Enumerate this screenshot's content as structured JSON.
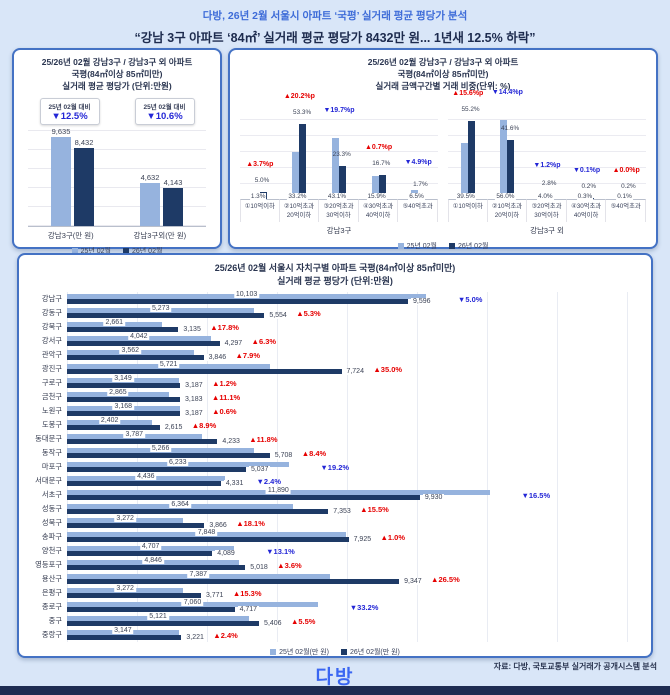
{
  "header": {
    "line1": "다방, 26년 2월 서울시 아파트 ‘국평’ 실거래 평균 평당가 분석",
    "line2": "“강남 3구 아파트 ‘84㎡’ 실거래 평균 평당가 8432만 원... 1년새 12.5% 하락”"
  },
  "colors": {
    "background": "#d9e6f8",
    "panel_border": "#4472c4",
    "series_25feb": "#96b3de",
    "series_26feb": "#1e3a66",
    "up_red": "#e60000",
    "down_blue": "#2326d6",
    "title_blue": "#3e6cd8",
    "logo_blue": "#3a66f2"
  },
  "chart_data": [
    {
      "type": "bar",
      "t1": "25/26년 02월 강남3구 / 강남3구 외 아파트",
      "t2": "국평(84㎡이상 85㎡미만)",
      "t3": "실거래 평균 평당가 (단위:만원)",
      "ylim": [
        0,
        12000
      ],
      "grid_step": 2000,
      "badges": [
        {
          "label": "25년 02월 대비",
          "value": "▼12.5%",
          "dir": "down"
        },
        {
          "label": "25년 02월 대비",
          "value": "▼10.6%",
          "dir": "down"
        }
      ],
      "groups": [
        {
          "name": "강남3구(만 원)",
          "v25": 9635,
          "l25": "9,635",
          "v26": 8432,
          "l26": "8,432"
        },
        {
          "name": "강남3구외(만 원)",
          "v25": 4632,
          "l25": "4,632",
          "v26": 4143,
          "l26": "4,143"
        }
      ],
      "legend": [
        "25년 02월",
        "26년 02월"
      ]
    },
    {
      "type": "bar",
      "t1": "25/26년 02월 강남3구 / 강남3구 외 아파트",
      "t2": "국평(84㎡이상 85㎡미만)",
      "t3": "실거래 금액구간별 거래 비중(단위: %)",
      "ylim": [
        0,
        60
      ],
      "groups": [
        {
          "name": "강남3구",
          "rows": [
            {
              "c1": "①10억이하",
              "c2": "",
              "v25": "1.3%",
              "v26": "5.0%",
              "chg": "▲3.7%p",
              "dir": "up"
            },
            {
              "c1": "②10억초과",
              "c2": "20억이하",
              "v25": "33.2%",
              "v26": "53.3%",
              "chg": "▲20.2%p",
              "dir": "up"
            },
            {
              "c1": "③20억초과",
              "c2": "30억이하",
              "v25": "43.1%",
              "v26": "23.3%",
              "chg": "▼19.7%p",
              "dir": "down"
            },
            {
              "c1": "④30억초과",
              "c2": "40억이하",
              "v25": "15.9%",
              "v26": "16.7%",
              "chg": "▲0.7%p",
              "dir": "up"
            },
            {
              "c1": "⑤40억초과",
              "c2": "",
              "v25": "6.5%",
              "v26": "1.7%",
              "chg": "▼4.9%p",
              "dir": "down"
            }
          ]
        },
        {
          "name": "강남3구 외",
          "rows": [
            {
              "c1": "①10억이하",
              "c2": "",
              "v25": "39.5%",
              "v26": "55.2%",
              "chg": "▲15.6%p",
              "dir": "up"
            },
            {
              "c1": "②10억초과",
              "c2": "20억이하",
              "v25": "56.0%",
              "v26": "41.6%",
              "chg": "▼14.4%p",
              "dir": "down"
            },
            {
              "c1": "③20억초과",
              "c2": "30억이하",
              "v25": "4.0%",
              "v26": "2.8%",
              "chg": "▼1.2%p",
              "dir": "down"
            },
            {
              "c1": "④30억초과",
              "c2": "40억이하",
              "v25": "0.3%",
              "v26": "0.2%",
              "chg": "▼0.1%p",
              "dir": "down"
            },
            {
              "c1": "⑤40억초과",
              "c2": "",
              "v25": "0.1%",
              "v26": "0.2%",
              "chg": "▲0.0%p",
              "dir": "up"
            }
          ]
        }
      ],
      "legend": [
        "25년 02월",
        "26년 02월"
      ]
    },
    {
      "type": "bar",
      "orientation": "horizontal",
      "t1": "25/26년 02월 서울시 자치구별 아파트 국평(84㎡이상 85㎡미만)",
      "t2": "실거래 평균 평당가 (단위:만원)",
      "xlim": [
        0,
        16000
      ],
      "grid_step": 2000,
      "rows": [
        {
          "gu": "강남구",
          "v25": 10103,
          "l25": "10,103",
          "v26": 9596,
          "l26": "9,596",
          "chg": "▼5.0%",
          "dir": "down"
        },
        {
          "gu": "강동구",
          "v25": 5273,
          "l25": "5,273",
          "v26": 5554,
          "l26": "5,554",
          "chg": "▲5.3%",
          "dir": "up"
        },
        {
          "gu": "강북구",
          "v25": 2661,
          "l25": "2,661",
          "v26": 3135,
          "l26": "3,135",
          "chg": "▲17.8%",
          "dir": "up"
        },
        {
          "gu": "강서구",
          "v25": 4042,
          "l25": "4,042",
          "v26": 4297,
          "l26": "4,297",
          "chg": "▲6.3%",
          "dir": "up"
        },
        {
          "gu": "관악구",
          "v25": 3562,
          "l25": "3,562",
          "v26": 3846,
          "l26": "3,846",
          "chg": "▲7.9%",
          "dir": "up"
        },
        {
          "gu": "광진구",
          "v25": 5721,
          "l25": "5,721",
          "v26": 7724,
          "l26": "7,724",
          "chg": "▲35.0%",
          "dir": "up"
        },
        {
          "gu": "구로구",
          "v25": 3149,
          "l25": "3,149",
          "v26": 3187,
          "l26": "3,187",
          "chg": "▲1.2%",
          "dir": "up"
        },
        {
          "gu": "금천구",
          "v25": 2865,
          "l25": "2,865",
          "v26": 3183,
          "l26": "3,183",
          "chg": "▲11.1%",
          "dir": "up"
        },
        {
          "gu": "노원구",
          "v25": 3168,
          "l25": "3,168",
          "v26": 3187,
          "l26": "3,187",
          "chg": "▲0.6%",
          "dir": "up"
        },
        {
          "gu": "도봉구",
          "v25": 2402,
          "l25": "2,402",
          "v26": 2615,
          "l26": "2,615",
          "chg": "▲8.9%",
          "dir": "up"
        },
        {
          "gu": "동대문구",
          "v25": 3787,
          "l25": "3,787",
          "v26": 4233,
          "l26": "4,233",
          "chg": "▲11.8%",
          "dir": "up"
        },
        {
          "gu": "동작구",
          "v25": 5266,
          "l25": "5,266",
          "v26": 5708,
          "l26": "5,708",
          "chg": "▲8.4%",
          "dir": "up"
        },
        {
          "gu": "마포구",
          "v25": 6233,
          "l25": "6,233",
          "v26": 5037,
          "l26": "5,037",
          "chg": "▼19.2%",
          "dir": "down"
        },
        {
          "gu": "서대문구",
          "v25": 4436,
          "l25": "4,436",
          "v26": 4331,
          "l26": "4,331",
          "chg": "▼2.4%",
          "dir": "down"
        },
        {
          "gu": "서초구",
          "v25": 11890,
          "l25": "11,890",
          "v26": 9930,
          "l26": "9,930",
          "chg": "▼16.5%",
          "dir": "down"
        },
        {
          "gu": "성동구",
          "v25": 6364,
          "l25": "6,364",
          "v26": 7353,
          "l26": "7,353",
          "chg": "▲15.5%",
          "dir": "up"
        },
        {
          "gu": "성북구",
          "v25": 3272,
          "l25": "3,272",
          "v26": 3866,
          "l26": "3,866",
          "chg": "▲18.1%",
          "dir": "up"
        },
        {
          "gu": "송파구",
          "v25": 7848,
          "l25": "7,848",
          "v26": 7925,
          "l26": "7,925",
          "chg": "▲1.0%",
          "dir": "up"
        },
        {
          "gu": "양천구",
          "v25": 4707,
          "l25": "4,707",
          "v26": 4089,
          "l26": "4,089",
          "chg": "▼13.1%",
          "dir": "down"
        },
        {
          "gu": "영등포구",
          "v25": 4846,
          "l25": "4,846",
          "v26": 5018,
          "l26": "5,018",
          "chg": "▲3.6%",
          "dir": "up"
        },
        {
          "gu": "용산구",
          "v25": 7387,
          "l25": "7,387",
          "v26": 9347,
          "l26": "9,347",
          "chg": "▲26.5%",
          "dir": "up"
        },
        {
          "gu": "은평구",
          "v25": 3272,
          "l25": "3,272",
          "v26": 3771,
          "l26": "3,771",
          "chg": "▲15.3%",
          "dir": "up"
        },
        {
          "gu": "종로구",
          "v25": 7060,
          "l25": "7,060",
          "v26": 4717,
          "l26": "4,717",
          "chg": "▼33.2%",
          "dir": "down"
        },
        {
          "gu": "중구",
          "v25": 5121,
          "l25": "5,121",
          "v26": 5406,
          "l26": "5,406",
          "chg": "▲5.5%",
          "dir": "up"
        },
        {
          "gu": "중랑구",
          "v25": 3147,
          "l25": "3,147",
          "v26": 3221,
          "l26": "3,221",
          "chg": "▲2.4%",
          "dir": "up"
        }
      ],
      "legend": [
        "25년 02월(만 원)",
        "26년 02월(만 원)"
      ]
    }
  ],
  "footer": {
    "source": "자료: 다방, 국토교통부 실거래가 공개시스템 분석",
    "logo": "다방"
  }
}
